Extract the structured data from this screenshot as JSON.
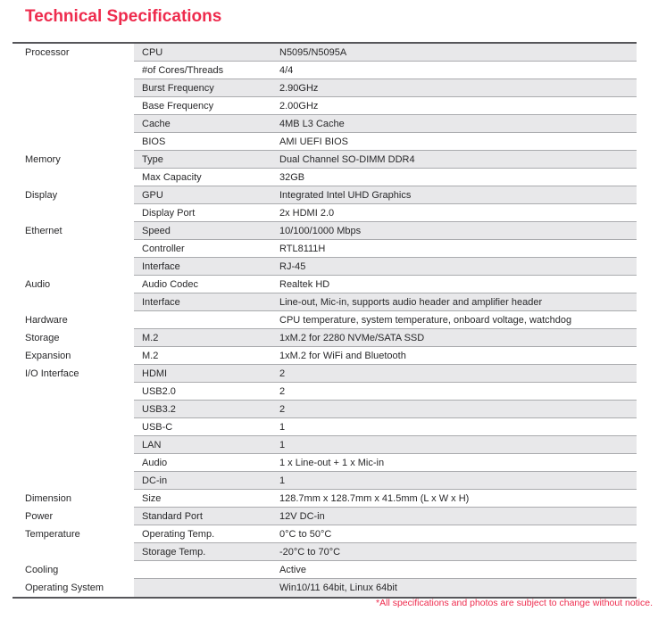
{
  "page": {
    "title": "Technical Specifications",
    "footnote": "*All specifications and photos are subject to change without notice.",
    "colors": {
      "accent": "#ee2b4d",
      "row_shade": "#e8e8ea",
      "row_line": "#aaabae",
      "table_border": "#56565a",
      "text": "#28282a"
    }
  },
  "table": {
    "rows": [
      {
        "category": "Processor",
        "attribute": "CPU",
        "value": "N5095/N5095A"
      },
      {
        "category": "",
        "attribute": "#of Cores/Threads",
        "value": "4/4"
      },
      {
        "category": "",
        "attribute": "Burst Frequency",
        "value": "2.90GHz"
      },
      {
        "category": "",
        "attribute": "Base Frequency",
        "value": "2.00GHz"
      },
      {
        "category": "",
        "attribute": "Cache",
        "value": "4MB L3 Cache"
      },
      {
        "category": "",
        "attribute": "BIOS",
        "value": "AMI UEFI BIOS"
      },
      {
        "category": "Memory",
        "attribute": "Type",
        "value": "Dual Channel SO-DIMM DDR4"
      },
      {
        "category": "",
        "attribute": "Max Capacity",
        "value": "32GB"
      },
      {
        "category": "Display",
        "attribute": "GPU",
        "value": "Integrated Intel UHD Graphics"
      },
      {
        "category": "",
        "attribute": "Display Port",
        "value": "2x HDMI 2.0"
      },
      {
        "category": "Ethernet",
        "attribute": "Speed",
        "value": "10/100/1000 Mbps"
      },
      {
        "category": "",
        "attribute": "Controller",
        "value": "RTL8111H"
      },
      {
        "category": "",
        "attribute": "Interface",
        "value": "RJ-45"
      },
      {
        "category": "Audio",
        "attribute": "Audio Codec",
        "value": "Realtek HD"
      },
      {
        "category": "",
        "attribute": "Interface",
        "value": "Line-out, Mic-in, supports audio header and amplifier header"
      },
      {
        "category": "Hardware",
        "attribute": "",
        "value": "CPU temperature, system temperature, onboard voltage, watchdog"
      },
      {
        "category": "Storage",
        "attribute": "M.2",
        "value": "1xM.2 for 2280 NVMe/SATA SSD"
      },
      {
        "category": "Expansion",
        "attribute": "M.2",
        "value": "1xM.2 for WiFi and Bluetooth"
      },
      {
        "category": "I/O Interface",
        "attribute": "HDMI",
        "value": "2"
      },
      {
        "category": "",
        "attribute": "USB2.0",
        "value": "2"
      },
      {
        "category": "",
        "attribute": "USB3.2",
        "value": "2"
      },
      {
        "category": "",
        "attribute": "USB-C",
        "value": "1"
      },
      {
        "category": "",
        "attribute": "LAN",
        "value": "1"
      },
      {
        "category": "",
        "attribute": "Audio",
        "value": "1 x Line-out + 1 x Mic-in"
      },
      {
        "category": "",
        "attribute": "DC-in",
        "value": "1"
      },
      {
        "category": "Dimension",
        "attribute": "Size",
        "value": "128.7mm x 128.7mm x 41.5mm (L x W x H)"
      },
      {
        "category": "Power",
        "attribute": "Standard Port",
        "value": "12V DC-in"
      },
      {
        "category": "Temperature",
        "attribute": "Operating Temp.",
        "value": "0°C to 50°C"
      },
      {
        "category": "",
        "attribute": "Storage Temp.",
        "value": "-20°C to 70°C"
      },
      {
        "category": "Cooling",
        "attribute": "",
        "value": "Active"
      },
      {
        "category": "Operating System",
        "attribute": "",
        "value": "Win10/11 64bit, Linux 64bit"
      }
    ]
  }
}
